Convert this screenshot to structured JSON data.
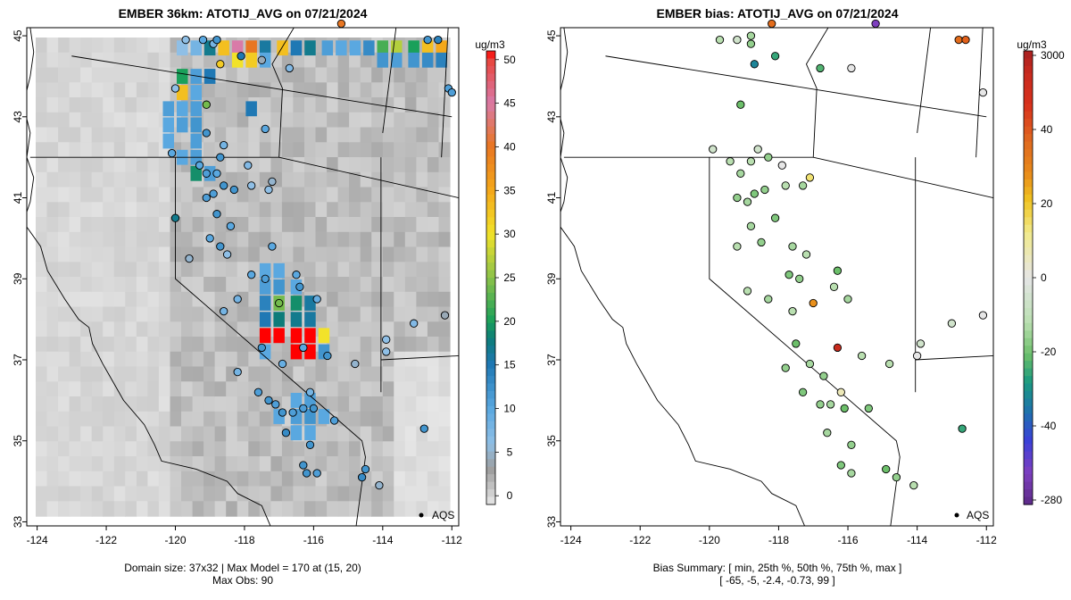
{
  "left_panel": {
    "title": "EMBER 36km: ATOTIJ_AVG on 07/21/2024",
    "footer_line1": "Domain size: 37x32 | Max Model = 170 at (15, 20)",
    "footer_line2": "Max Obs: 90",
    "colorbar_unit": "ug/m3",
    "colorbar_ticks": [
      "0",
      "5",
      "10",
      "15",
      "20",
      "25",
      "30",
      "35",
      "40",
      "45",
      "50"
    ],
    "colorbar_range": [
      -1,
      51
    ],
    "legend_label": "AQS"
  },
  "right_panel": {
    "title": "EMBER bias: ATOTIJ_AVG on 07/21/2024",
    "footer_line1": "Bias Summary: [ min, 25th %, 50th %, 75th %, max ]",
    "footer_line2": "[ -65,   -5,   -2.4,   -0.73,   99 ]",
    "colorbar_unit": "ug/m3",
    "colorbar_ticks": [
      "3000",
      "40",
      "20",
      "0",
      "-20",
      "-40",
      "-280"
    ],
    "legend_label": "AQS"
  },
  "axes": {
    "x_ticks": [
      -124,
      -122,
      -120,
      -118,
      -116,
      -114,
      -112
    ],
    "y_ticks": [
      33,
      35,
      37,
      39,
      41,
      43,
      45
    ],
    "x_range": [
      -124.3,
      -111.8
    ],
    "y_range": [
      32.9,
      45.2
    ]
  },
  "colors": {
    "background": "#ffffff",
    "land_gray": "#c9c9c9",
    "hotspot": "#ff0000"
  },
  "model_hotspots": [
    {
      "lon": -119.8,
      "lat": 44.7,
      "value": 6
    },
    {
      "lon": -119.4,
      "lat": 44.7,
      "value": 8
    },
    {
      "lon": -119.0,
      "lat": 44.7,
      "value": 17
    },
    {
      "lon": -118.6,
      "lat": 44.7,
      "value": 33
    },
    {
      "lon": -118.2,
      "lat": 44.7,
      "value": 45
    },
    {
      "lon": -117.8,
      "lat": 44.7,
      "value": 40
    },
    {
      "lon": -117.4,
      "lat": 44.7,
      "value": 16
    },
    {
      "lon": -116.9,
      "lat": 44.7,
      "value": 33
    },
    {
      "lon": -116.5,
      "lat": 44.7,
      "value": 15
    },
    {
      "lon": -116.1,
      "lat": 44.7,
      "value": 17
    },
    {
      "lon": -115.6,
      "lat": 44.7,
      "value": 11
    },
    {
      "lon": -115.2,
      "lat": 44.7,
      "value": 10
    },
    {
      "lon": -114.8,
      "lat": 44.7,
      "value": 10
    },
    {
      "lon": -114.4,
      "lat": 44.7,
      "value": 13
    },
    {
      "lon": -114.0,
      "lat": 44.7,
      "value": 22
    },
    {
      "lon": -113.6,
      "lat": 44.7,
      "value": 27
    },
    {
      "lon": -113.1,
      "lat": 44.7,
      "value": 20
    },
    {
      "lon": -112.7,
      "lat": 44.7,
      "value": 33
    },
    {
      "lon": -112.3,
      "lat": 44.7,
      "value": 35
    },
    {
      "lon": -118.2,
      "lat": 44.4,
      "value": 30
    },
    {
      "lon": -117.8,
      "lat": 44.4,
      "value": 32
    },
    {
      "lon": -117.4,
      "lat": 44.4,
      "value": 10
    },
    {
      "lon": -114.0,
      "lat": 44.4,
      "value": 12
    },
    {
      "lon": -113.6,
      "lat": 44.4,
      "value": 11
    },
    {
      "lon": -113.1,
      "lat": 44.4,
      "value": 12
    },
    {
      "lon": -112.7,
      "lat": 44.4,
      "value": 13
    },
    {
      "lon": -112.3,
      "lat": 44.4,
      "value": 14
    },
    {
      "lon": -119.8,
      "lat": 44.0,
      "value": 20
    },
    {
      "lon": -119.4,
      "lat": 44.0,
      "value": 11
    },
    {
      "lon": -119.0,
      "lat": 44.0,
      "value": 15
    },
    {
      "lon": -119.8,
      "lat": 43.6,
      "value": 33
    },
    {
      "lon": -119.4,
      "lat": 43.6,
      "value": 10
    },
    {
      "lon": -120.2,
      "lat": 43.2,
      "value": 11
    },
    {
      "lon": -119.8,
      "lat": 43.2,
      "value": 10
    },
    {
      "lon": -119.4,
      "lat": 43.2,
      "value": 11
    },
    {
      "lon": -117.8,
      "lat": 43.2,
      "value": 15
    },
    {
      "lon": -120.2,
      "lat": 42.8,
      "value": 10
    },
    {
      "lon": -119.8,
      "lat": 42.8,
      "value": 11
    },
    {
      "lon": -119.4,
      "lat": 42.8,
      "value": 12
    },
    {
      "lon": -120.2,
      "lat": 42.4,
      "value": 10
    },
    {
      "lon": -119.4,
      "lat": 42.4,
      "value": 11
    },
    {
      "lon": -119.8,
      "lat": 42.0,
      "value": 10
    },
    {
      "lon": -119.4,
      "lat": 42.0,
      "value": 11
    },
    {
      "lon": -119.4,
      "lat": 41.6,
      "value": 19
    },
    {
      "lon": -119.0,
      "lat": 41.6,
      "value": 11
    },
    {
      "lon": -117.4,
      "lat": 39.2,
      "value": 10
    },
    {
      "lon": -117.0,
      "lat": 39.2,
      "value": 10
    },
    {
      "lon": -117.4,
      "lat": 38.8,
      "value": 11
    },
    {
      "lon": -117.0,
      "lat": 38.8,
      "value": 12
    },
    {
      "lon": -116.5,
      "lat": 38.8,
      "value": 10
    },
    {
      "lon": -117.4,
      "lat": 38.4,
      "value": 14
    },
    {
      "lon": -117.0,
      "lat": 38.4,
      "value": 24
    },
    {
      "lon": -116.5,
      "lat": 38.4,
      "value": 19
    },
    {
      "lon": -116.1,
      "lat": 38.4,
      "value": 16
    },
    {
      "lon": -117.4,
      "lat": 38.0,
      "value": 15
    },
    {
      "lon": -117.0,
      "lat": 38.0,
      "value": 18
    },
    {
      "lon": -116.5,
      "lat": 38.0,
      "value": 17
    },
    {
      "lon": -116.1,
      "lat": 38.0,
      "value": 16
    },
    {
      "lon": -117.4,
      "lat": 37.6,
      "value": 51
    },
    {
      "lon": -117.0,
      "lat": 37.6,
      "value": 51
    },
    {
      "lon": -116.5,
      "lat": 37.6,
      "value": 51
    },
    {
      "lon": -116.1,
      "lat": 37.6,
      "value": 51
    },
    {
      "lon": -115.7,
      "lat": 37.6,
      "value": 30
    },
    {
      "lon": -117.4,
      "lat": 37.2,
      "value": 10
    },
    {
      "lon": -116.5,
      "lat": 37.2,
      "value": 51
    },
    {
      "lon": -116.1,
      "lat": 37.2,
      "value": 51
    },
    {
      "lon": -115.7,
      "lat": 37.2,
      "value": 12
    },
    {
      "lon": -116.5,
      "lat": 36.0,
      "value": 10
    },
    {
      "lon": -116.1,
      "lat": 36.0,
      "value": 11
    },
    {
      "lon": -117.0,
      "lat": 35.6,
      "value": 10
    },
    {
      "lon": -116.5,
      "lat": 35.6,
      "value": 11
    },
    {
      "lon": -116.1,
      "lat": 35.6,
      "value": 12
    },
    {
      "lon": -115.7,
      "lat": 35.6,
      "value": 10
    },
    {
      "lon": -116.5,
      "lat": 35.2,
      "value": 10
    },
    {
      "lon": -116.1,
      "lat": 35.2,
      "value": 10
    }
  ],
  "obs_sites_left": [
    {
      "lon": -119.7,
      "lat": 44.9,
      "v": 6
    },
    {
      "lon": -119.2,
      "lat": 44.9,
      "v": 10
    },
    {
      "lon": -118.9,
      "lat": 44.8,
      "v": 8
    },
    {
      "lon": -118.8,
      "lat": 44.9,
      "v": 12
    },
    {
      "lon": -118.1,
      "lat": 44.5,
      "v": 15
    },
    {
      "lon": -117.5,
      "lat": 44.4,
      "v": 4
    },
    {
      "lon": -118.7,
      "lat": 44.3,
      "v": 32
    },
    {
      "lon": -116.7,
      "lat": 44.2,
      "v": 7
    },
    {
      "lon": -112.7,
      "lat": 44.9,
      "v": 12
    },
    {
      "lon": -112.4,
      "lat": 44.9,
      "v": 14
    },
    {
      "lon": -112.1,
      "lat": 43.7,
      "v": 11
    },
    {
      "lon": -115.2,
      "lat": 45.3,
      "v": 40
    },
    {
      "lon": -120.0,
      "lat": 43.7,
      "v": 6
    },
    {
      "lon": -119.1,
      "lat": 43.3,
      "v": 24
    },
    {
      "lon": -117.4,
      "lat": 42.7,
      "v": 10
    },
    {
      "lon": -119.1,
      "lat": 42.6,
      "v": 12
    },
    {
      "lon": -118.6,
      "lat": 42.3,
      "v": 8
    },
    {
      "lon": -120.1,
      "lat": 42.1,
      "v": 10
    },
    {
      "lon": -118.7,
      "lat": 42.0,
      "v": 12
    },
    {
      "lon": -119.3,
      "lat": 41.8,
      "v": 10
    },
    {
      "lon": -119.1,
      "lat": 41.6,
      "v": 11
    },
    {
      "lon": -118.8,
      "lat": 41.6,
      "v": 10
    },
    {
      "lon": -117.9,
      "lat": 41.8,
      "v": 7
    },
    {
      "lon": -118.6,
      "lat": 41.3,
      "v": 12
    },
    {
      "lon": -118.3,
      "lat": 41.2,
      "v": 12
    },
    {
      "lon": -118.9,
      "lat": 41.1,
      "v": 11
    },
    {
      "lon": -119.1,
      "lat": 41.0,
      "v": 11
    },
    {
      "lon": -117.3,
      "lat": 41.2,
      "v": 6
    },
    {
      "lon": -117.2,
      "lat": 41.4,
      "v": 5
    },
    {
      "lon": -117.8,
      "lat": 41.3,
      "v": 6
    },
    {
      "lon": -120.0,
      "lat": 40.5,
      "v": 17
    },
    {
      "lon": -118.8,
      "lat": 40.6,
      "v": 12
    },
    {
      "lon": -118.4,
      "lat": 40.3,
      "v": 10
    },
    {
      "lon": -119.0,
      "lat": 40.0,
      "v": 10
    },
    {
      "lon": -118.7,
      "lat": 39.8,
      "v": 12
    },
    {
      "lon": -119.6,
      "lat": 39.5,
      "v": 5
    },
    {
      "lon": -117.2,
      "lat": 39.8,
      "v": 10
    },
    {
      "lon": -118.5,
      "lat": 39.6,
      "v": 6
    },
    {
      "lon": -116.5,
      "lat": 39.1,
      "v": 10
    },
    {
      "lon": -116.4,
      "lat": 38.8,
      "v": 12
    },
    {
      "lon": -117.8,
      "lat": 39.1,
      "v": 10
    },
    {
      "lon": -117.4,
      "lat": 39.0,
      "v": 11
    },
    {
      "lon": -117.0,
      "lat": 38.4,
      "v": 24
    },
    {
      "lon": -115.9,
      "lat": 38.5,
      "v": 9
    },
    {
      "lon": -118.2,
      "lat": 38.5,
      "v": 8
    },
    {
      "lon": -118.6,
      "lat": 38.2,
      "v": 8
    },
    {
      "lon": -117.5,
      "lat": 37.3,
      "v": 12
    },
    {
      "lon": -116.3,
      "lat": 37.3,
      "v": 10
    },
    {
      "lon": -115.6,
      "lat": 37.1,
      "v": 12
    },
    {
      "lon": -118.2,
      "lat": 36.7,
      "v": 8
    },
    {
      "lon": -116.9,
      "lat": 36.9,
      "v": 9
    },
    {
      "lon": -117.6,
      "lat": 36.2,
      "v": 11
    },
    {
      "lon": -117.3,
      "lat": 36.0,
      "v": 12
    },
    {
      "lon": -117.1,
      "lat": 35.9,
      "v": 11
    },
    {
      "lon": -116.9,
      "lat": 35.7,
      "v": 12
    },
    {
      "lon": -116.6,
      "lat": 35.7,
      "v": 11
    },
    {
      "lon": -116.3,
      "lat": 35.8,
      "v": 11
    },
    {
      "lon": -116.1,
      "lat": 36.2,
      "v": 8
    },
    {
      "lon": -116.0,
      "lat": 35.8,
      "v": 12
    },
    {
      "lon": -115.4,
      "lat": 35.5,
      "v": 11
    },
    {
      "lon": -116.8,
      "lat": 35.2,
      "v": 13
    },
    {
      "lon": -116.1,
      "lat": 34.9,
      "v": 12
    },
    {
      "lon": -116.2,
      "lat": 34.2,
      "v": 12
    },
    {
      "lon": -115.9,
      "lat": 34.2,
      "v": 11
    },
    {
      "lon": -116.3,
      "lat": 34.4,
      "v": 12
    },
    {
      "lon": -114.5,
      "lat": 34.3,
      "v": 12
    },
    {
      "lon": -114.6,
      "lat": 34.1,
      "v": 13
    },
    {
      "lon": -114.1,
      "lat": 33.9,
      "v": 5
    },
    {
      "lon": -112.8,
      "lat": 35.3,
      "v": 12
    },
    {
      "lon": -113.1,
      "lat": 37.9,
      "v": 7
    },
    {
      "lon": -112.2,
      "lat": 38.1,
      "v": 4
    },
    {
      "lon": -113.9,
      "lat": 37.5,
      "v": 6
    },
    {
      "lon": -113.9,
      "lat": 37.2,
      "v": 6
    },
    {
      "lon": -114.8,
      "lat": 36.9,
      "v": 5
    },
    {
      "lon": -112.0,
      "lat": 43.6,
      "v": 11
    }
  ],
  "obs_sites_right": [
    {
      "lon": -119.7,
      "lat": 44.9,
      "v": -2
    },
    {
      "lon": -119.2,
      "lat": 44.9,
      "v": -1
    },
    {
      "lon": -118.8,
      "lat": 45.0,
      "v": -3
    },
    {
      "lon": -118.8,
      "lat": 44.8,
      "v": -4
    },
    {
      "lon": -118.1,
      "lat": 44.5,
      "v": -10
    },
    {
      "lon": -116.8,
      "lat": 44.2,
      "v": -8
    },
    {
      "lon": -118.7,
      "lat": 44.3,
      "v": -16
    },
    {
      "lon": -115.9,
      "lat": 44.2,
      "v": 0
    },
    {
      "lon": -118.2,
      "lat": 45.3,
      "v": 30
    },
    {
      "lon": -115.2,
      "lat": 45.3,
      "v": -40
    },
    {
      "lon": -112.8,
      "lat": 44.9,
      "v": 30
    },
    {
      "lon": -112.6,
      "lat": 44.9,
      "v": 32
    },
    {
      "lon": -112.1,
      "lat": 43.6,
      "v": 0
    },
    {
      "lon": -119.1,
      "lat": 43.3,
      "v": -6
    },
    {
      "lon": -119.9,
      "lat": 42.2,
      "v": -1
    },
    {
      "lon": -119.4,
      "lat": 41.9,
      "v": -2
    },
    {
      "lon": -119.1,
      "lat": 41.6,
      "v": -3
    },
    {
      "lon": -118.8,
      "lat": 41.9,
      "v": -2
    },
    {
      "lon": -118.6,
      "lat": 42.2,
      "v": -1
    },
    {
      "lon": -118.3,
      "lat": 42.0,
      "v": -4
    },
    {
      "lon": -117.9,
      "lat": 41.8,
      "v": 0
    },
    {
      "lon": -117.1,
      "lat": 41.5,
      "v": 8
    },
    {
      "lon": -117.3,
      "lat": 41.3,
      "v": -3
    },
    {
      "lon": -117.8,
      "lat": 41.3,
      "v": -2
    },
    {
      "lon": -118.4,
      "lat": 41.2,
      "v": -4
    },
    {
      "lon": -118.7,
      "lat": 41.1,
      "v": -5
    },
    {
      "lon": -118.9,
      "lat": 40.9,
      "v": -3
    },
    {
      "lon": -119.2,
      "lat": 41.0,
      "v": -4
    },
    {
      "lon": -118.1,
      "lat": 40.5,
      "v": -5
    },
    {
      "lon": -118.8,
      "lat": 40.3,
      "v": -3
    },
    {
      "lon": -119.2,
      "lat": 39.8,
      "v": -2
    },
    {
      "lon": -118.5,
      "lat": 39.9,
      "v": -4
    },
    {
      "lon": -117.6,
      "lat": 39.8,
      "v": -3
    },
    {
      "lon": -117.2,
      "lat": 39.6,
      "v": -2
    },
    {
      "lon": -116.3,
      "lat": 39.2,
      "v": -6
    },
    {
      "lon": -116.4,
      "lat": 38.8,
      "v": -2
    },
    {
      "lon": -117.4,
      "lat": 39.0,
      "v": -4
    },
    {
      "lon": -117.7,
      "lat": 39.1,
      "v": -5
    },
    {
      "lon": -117.0,
      "lat": 38.4,
      "v": 24
    },
    {
      "lon": -117.6,
      "lat": 38.2,
      "v": -2
    },
    {
      "lon": -118.3,
      "lat": 38.5,
      "v": -3
    },
    {
      "lon": -118.9,
      "lat": 38.7,
      "v": -2
    },
    {
      "lon": -116.0,
      "lat": 38.5,
      "v": -3
    },
    {
      "lon": -117.5,
      "lat": 37.4,
      "v": -6
    },
    {
      "lon": -116.3,
      "lat": 37.3,
      "v": 60
    },
    {
      "lon": -115.6,
      "lat": 37.1,
      "v": -2
    },
    {
      "lon": -117.8,
      "lat": 36.8,
      "v": -4
    },
    {
      "lon": -117.1,
      "lat": 36.9,
      "v": -3
    },
    {
      "lon": -117.3,
      "lat": 36.2,
      "v": -5
    },
    {
      "lon": -116.8,
      "lat": 35.9,
      "v": -4
    },
    {
      "lon": -116.5,
      "lat": 35.9,
      "v": -3
    },
    {
      "lon": -116.2,
      "lat": 36.2,
      "v": 3
    },
    {
      "lon": -116.1,
      "lat": 35.8,
      "v": -6
    },
    {
      "lon": -115.4,
      "lat": 35.8,
      "v": -5
    },
    {
      "lon": -116.6,
      "lat": 35.2,
      "v": -3
    },
    {
      "lon": -115.9,
      "lat": 34.9,
      "v": -4
    },
    {
      "lon": -116.2,
      "lat": 34.4,
      "v": -5
    },
    {
      "lon": -115.9,
      "lat": 34.2,
      "v": -3
    },
    {
      "lon": -114.9,
      "lat": 34.3,
      "v": -6
    },
    {
      "lon": -114.6,
      "lat": 34.1,
      "v": -4
    },
    {
      "lon": -114.1,
      "lat": 33.9,
      "v": -2
    },
    {
      "lon": -112.7,
      "lat": 35.3,
      "v": -10
    },
    {
      "lon": -113.0,
      "lat": 37.9,
      "v": -1
    },
    {
      "lon": -112.1,
      "lat": 38.1,
      "v": 0
    },
    {
      "lon": -113.9,
      "lat": 37.4,
      "v": -1
    },
    {
      "lon": -114.0,
      "lat": 37.1,
      "v": 0
    },
    {
      "lon": -114.8,
      "lat": 36.9,
      "v": -2
    },
    {
      "lon": -116.7,
      "lat": 36.6,
      "v": -4
    }
  ]
}
